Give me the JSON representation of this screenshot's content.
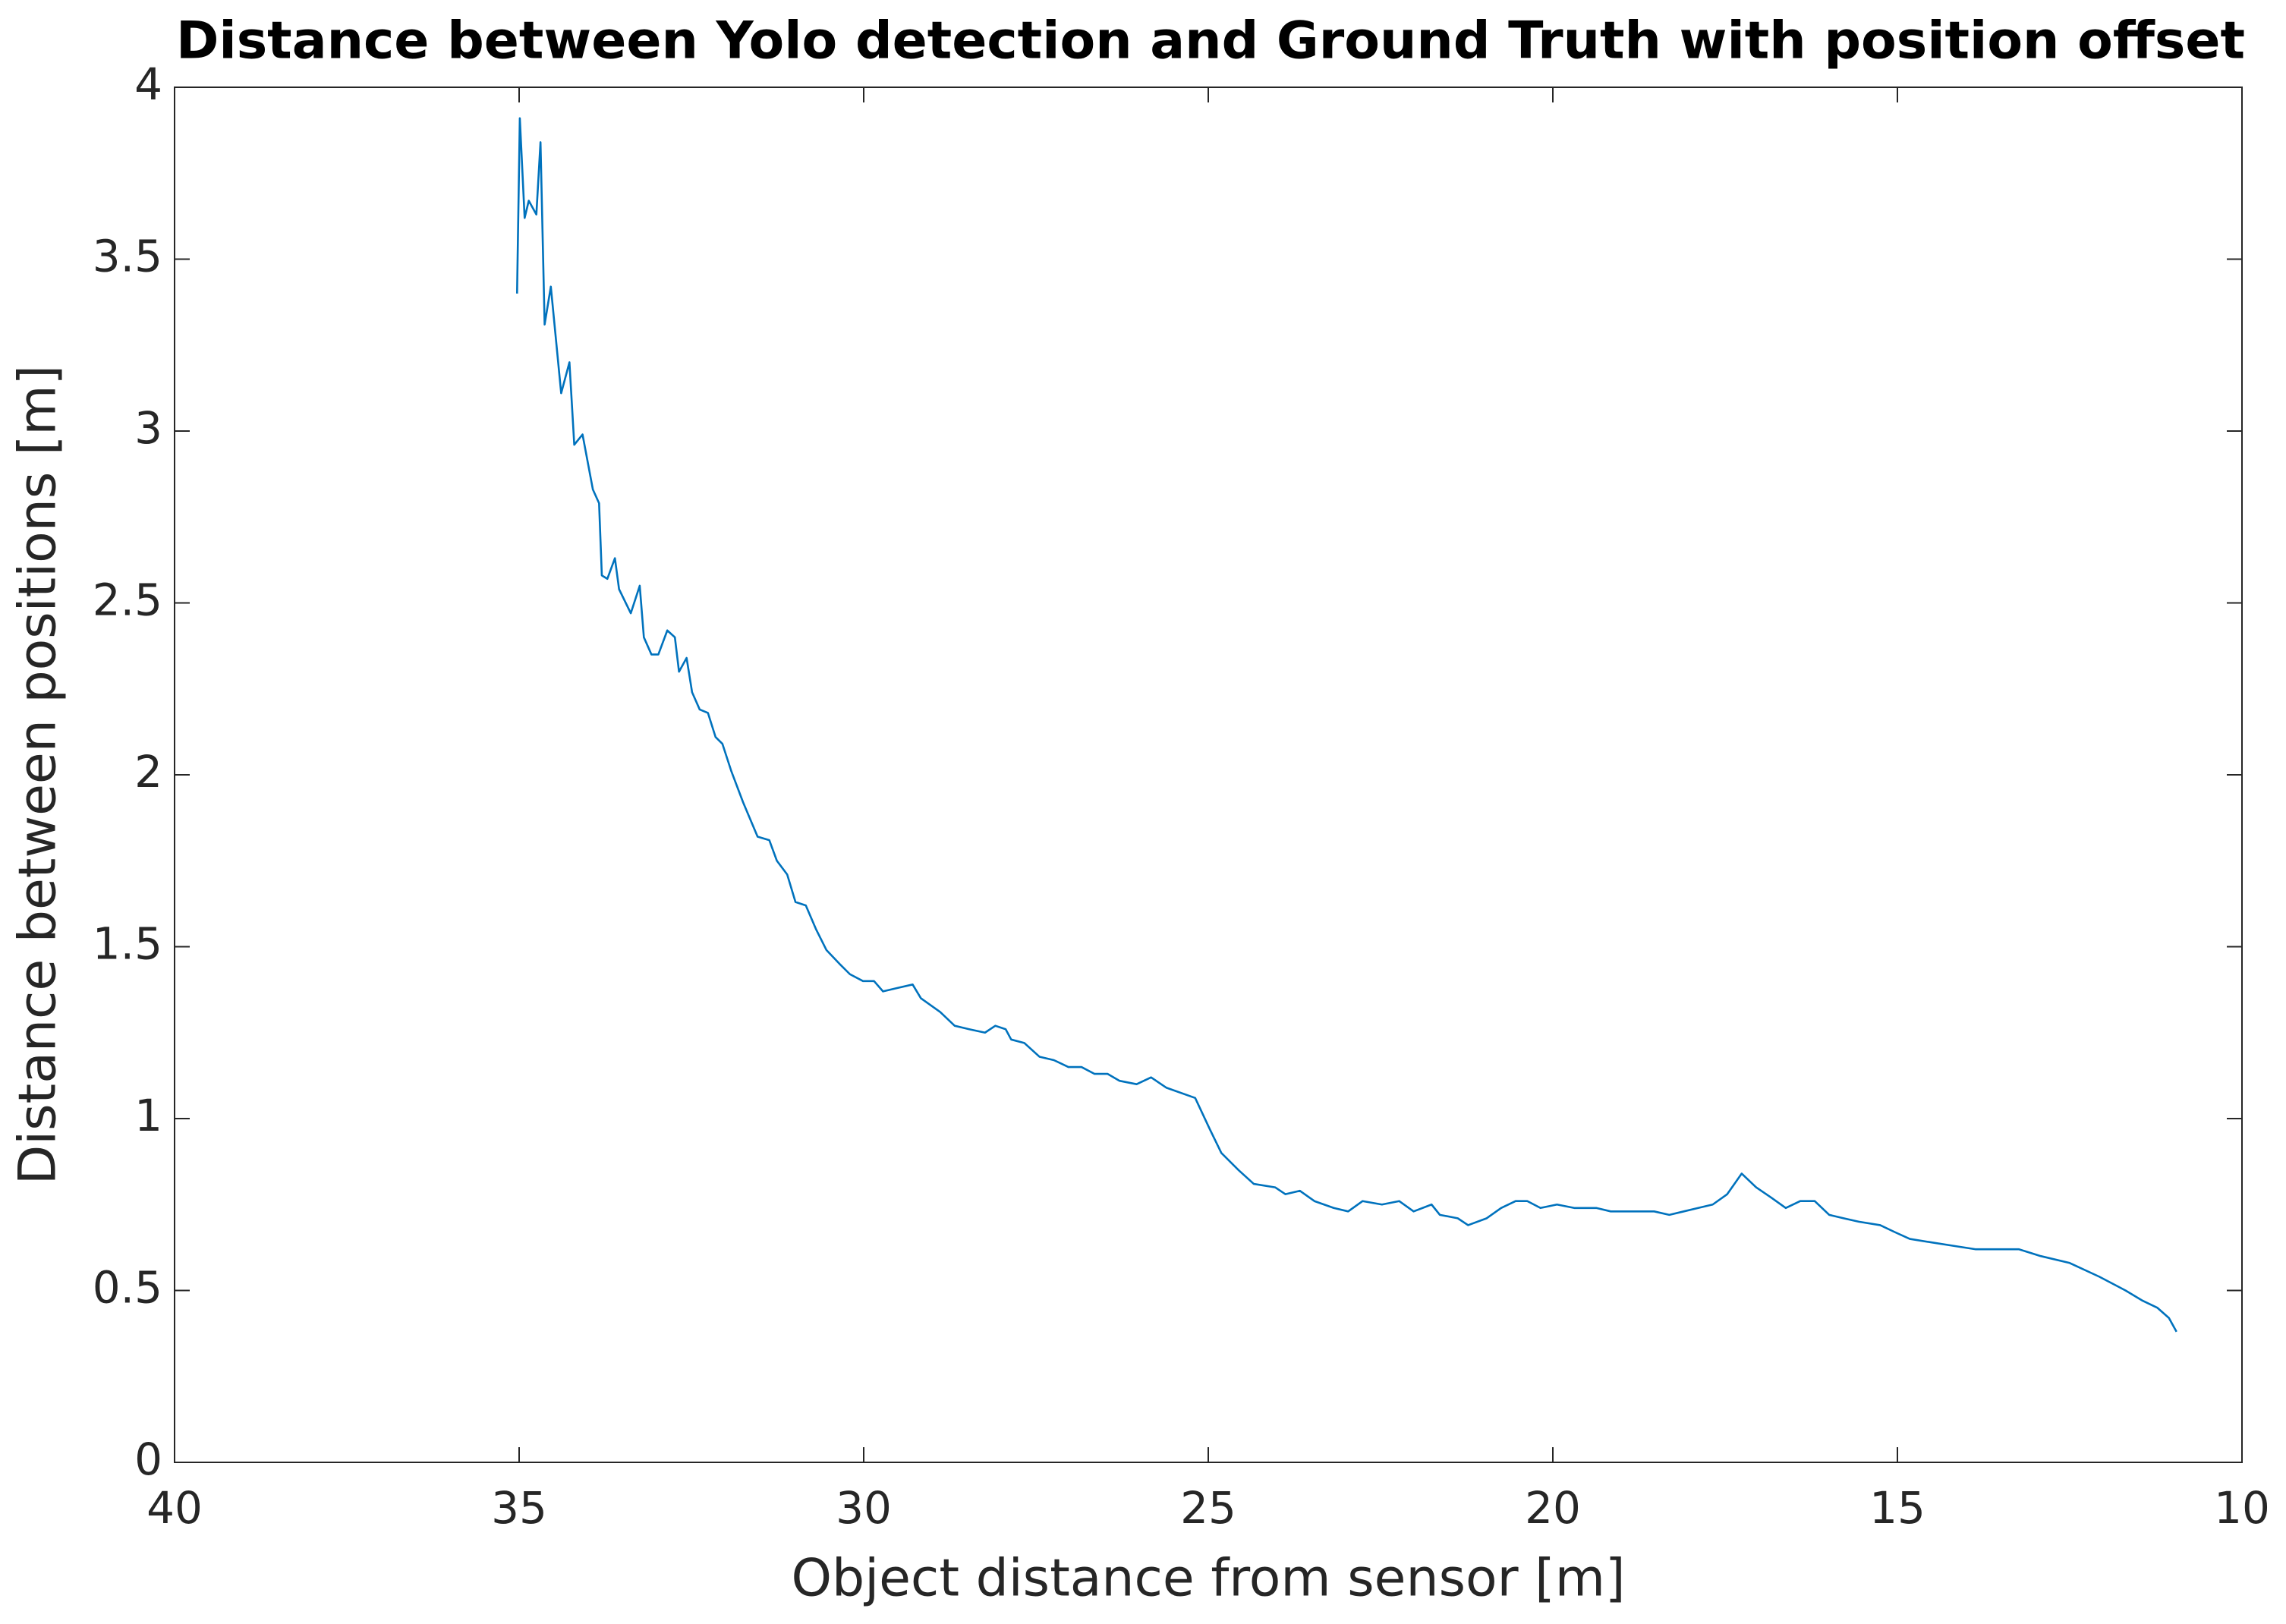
{
  "chart_data": {
    "type": "line",
    "title": "Distance between Yolo detection and Ground Truth with position offset",
    "x_label": "Object distance from sensor [m]",
    "y_label": "Distance between positions [m]",
    "xlim": [
      40,
      10
    ],
    "xticks": [
      40,
      35,
      30,
      25,
      20,
      15,
      10
    ],
    "ylim": [
      0,
      4
    ],
    "yticks": [
      0,
      0.5,
      1,
      1.5,
      2,
      2.5,
      3,
      3.5,
      4
    ],
    "grid": false,
    "series": [
      {
        "color": "#0072bd",
        "x": [
          35.03,
          34.99,
          34.92,
          34.86,
          34.75,
          34.69,
          34.63,
          34.54,
          34.39,
          34.27,
          34.2,
          34.08,
          33.93,
          33.84,
          33.8,
          33.72,
          33.61,
          33.55,
          33.38,
          33.25,
          33.19,
          33.08,
          32.98,
          32.85,
          32.74,
          32.68,
          32.57,
          32.49,
          32.38,
          32.26,
          32.15,
          32.05,
          31.92,
          31.75,
          31.54,
          31.37,
          31.26,
          31.11,
          30.99,
          30.84,
          30.69,
          30.54,
          30.35,
          30.2,
          30.01,
          29.85,
          29.72,
          29.51,
          29.29,
          29.17,
          28.89,
          28.68,
          28.47,
          28.24,
          28.09,
          27.94,
          27.86,
          27.67,
          27.45,
          27.24,
          27.03,
          26.84,
          26.65,
          26.46,
          26.29,
          26.04,
          25.83,
          25.61,
          25.19,
          24.98,
          24.81,
          24.56,
          24.34,
          24.03,
          23.88,
          23.67,
          23.46,
          23.18,
          22.97,
          22.76,
          22.48,
          22.23,
          22.02,
          21.76,
          21.64,
          21.38,
          21.23,
          20.96,
          20.75,
          20.54,
          20.37,
          20.18,
          19.94,
          19.69,
          19.37,
          19.16,
          18.95,
          18.74,
          18.53,
          18.31,
          18.1,
          17.89,
          17.68,
          17.47,
          17.26,
          17.05,
          16.83,
          16.62,
          16.41,
          16.2,
          15.99,
          15.78,
          15.56,
          15.25,
          15.04,
          14.82,
          14.51,
          14.19,
          13.87,
          13.55,
          13.24,
          12.92,
          12.5,
          12.07,
          11.69,
          11.44,
          11.23,
          11.06,
          10.95
        ],
        "values": [
          3.4,
          3.91,
          3.62,
          3.67,
          3.63,
          3.84,
          3.31,
          3.42,
          3.11,
          3.2,
          2.96,
          2.99,
          2.83,
          2.79,
          2.58,
          2.57,
          2.63,
          2.54,
          2.47,
          2.55,
          2.4,
          2.35,
          2.35,
          2.42,
          2.4,
          2.3,
          2.34,
          2.24,
          2.19,
          2.18,
          2.11,
          2.09,
          2.01,
          1.92,
          1.82,
          1.81,
          1.75,
          1.71,
          1.63,
          1.62,
          1.55,
          1.49,
          1.45,
          1.42,
          1.4,
          1.4,
          1.37,
          1.38,
          1.39,
          1.35,
          1.31,
          1.27,
          1.26,
          1.25,
          1.27,
          1.26,
          1.23,
          1.22,
          1.18,
          1.17,
          1.15,
          1.15,
          1.13,
          1.13,
          1.11,
          1.1,
          1.12,
          1.09,
          1.06,
          0.97,
          0.9,
          0.85,
          0.81,
          0.8,
          0.78,
          0.79,
          0.76,
          0.74,
          0.73,
          0.76,
          0.75,
          0.76,
          0.73,
          0.75,
          0.72,
          0.71,
          0.69,
          0.71,
          0.74,
          0.76,
          0.76,
          0.74,
          0.75,
          0.74,
          0.74,
          0.73,
          0.73,
          0.73,
          0.73,
          0.72,
          0.73,
          0.74,
          0.75,
          0.78,
          0.84,
          0.8,
          0.77,
          0.74,
          0.76,
          0.76,
          0.72,
          0.71,
          0.7,
          0.69,
          0.67,
          0.65,
          0.64,
          0.63,
          0.62,
          0.62,
          0.62,
          0.6,
          0.58,
          0.54,
          0.5,
          0.47,
          0.45,
          0.42,
          0.38
        ]
      }
    ]
  }
}
